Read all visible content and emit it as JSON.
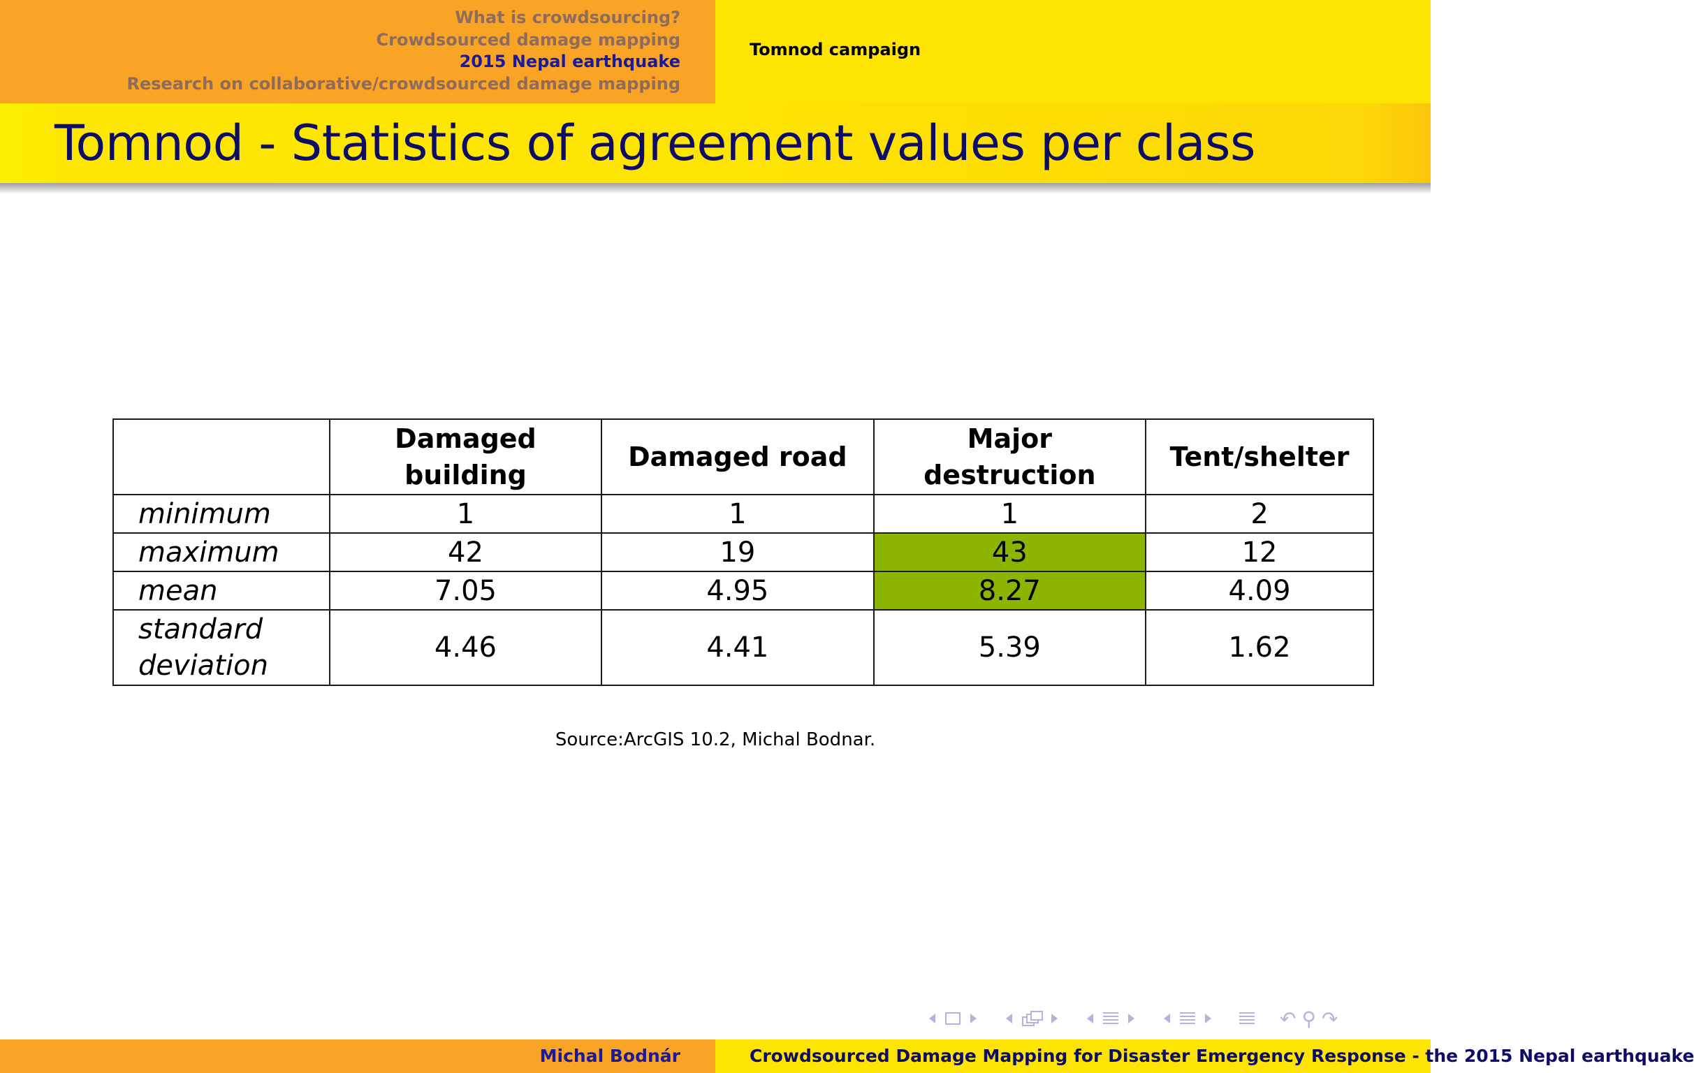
{
  "header": {
    "sections": [
      "What is crowdsourcing?",
      "Crowdsourced damage mapping",
      "2015 Nepal earthquake",
      "Research on collaborative/crowdsourced damage mapping"
    ],
    "active_section_index": 2,
    "subsection": "Tomnod campaign"
  },
  "slide": {
    "title": "Tomnod - Statistics of agreement values per class"
  },
  "table": {
    "columns": [
      "",
      "Damaged building",
      "Damaged road",
      "Major destruction",
      "Tent/shelter"
    ],
    "rows": [
      {
        "label": "minimum",
        "values": [
          "1",
          "1",
          "1",
          "2"
        ]
      },
      {
        "label": "maximum",
        "values": [
          "42",
          "19",
          "43",
          "12"
        ]
      },
      {
        "label": "mean",
        "values": [
          "7.05",
          "4.95",
          "8.27",
          "4.09"
        ]
      },
      {
        "label": "standard deviation",
        "values": [
          "4.46",
          "4.41",
          "5.39",
          "1.62"
        ]
      }
    ],
    "highlight_color": "#8cb400",
    "highlighted_cells": [
      {
        "row": "maximum",
        "column": "Major destruction"
      },
      {
        "row": "mean",
        "column": "Major destruction"
      }
    ]
  },
  "source": "Source:ArcGIS 10.2, Michal Bodnar.",
  "footer": {
    "author": "Michal Bodnár",
    "title": "Crowdsourced Damage Mapping for Disaster Emergency Response - the 2015 Nepal earthquake"
  },
  "navigation_icons": [
    "slide-nav-icon",
    "frame-nav-icon",
    "subsection-nav-icon",
    "section-nav-icon",
    "toc-icon",
    "back-icon",
    "search-icon",
    "forward-icon"
  ],
  "colors": {
    "header_orange": "#f9a425",
    "header_yellow": "#fee403",
    "title_text": "#0d0d66",
    "active_section": "#1a1a9c",
    "inactive_section": "#8e6b5c"
  }
}
